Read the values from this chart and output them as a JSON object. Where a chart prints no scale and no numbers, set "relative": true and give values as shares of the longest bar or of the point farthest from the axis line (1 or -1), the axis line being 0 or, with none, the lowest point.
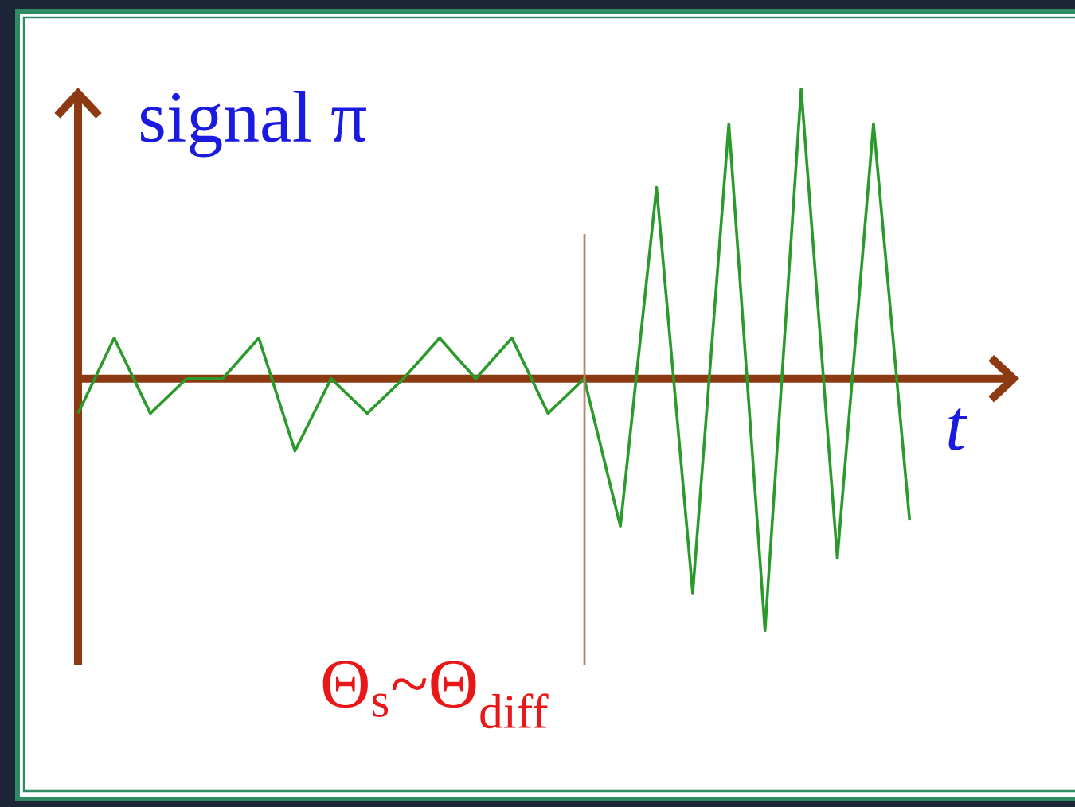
{
  "chart_data": {
    "type": "line",
    "ylabel": "signal π",
    "xlabel": "t",
    "relative": true,
    "color": "#2a9a2a",
    "categories": [
      null,
      null,
      null,
      null,
      null,
      null,
      null,
      null,
      null,
      null,
      null,
      null,
      null,
      null,
      null,
      null,
      null,
      null,
      null,
      null,
      null,
      null,
      null,
      null
    ],
    "values": [
      -0.12,
      0.14,
      -0.12,
      0,
      0,
      0.14,
      -0.25,
      0,
      -0.12,
      0,
      0.14,
      0,
      0.14,
      -0.12,
      0,
      -0.51,
      0.66,
      -0.74,
      0.88,
      -0.87,
      1,
      -0.62,
      0.88,
      -0.49
    ],
    "ref_lines": [
      {
        "axis": "y",
        "value": 0,
        "color": "#8b3a12"
      }
    ],
    "annotations": [
      "Θ$_{s}$~Θ$_{diff}$"
    ]
  }
}
